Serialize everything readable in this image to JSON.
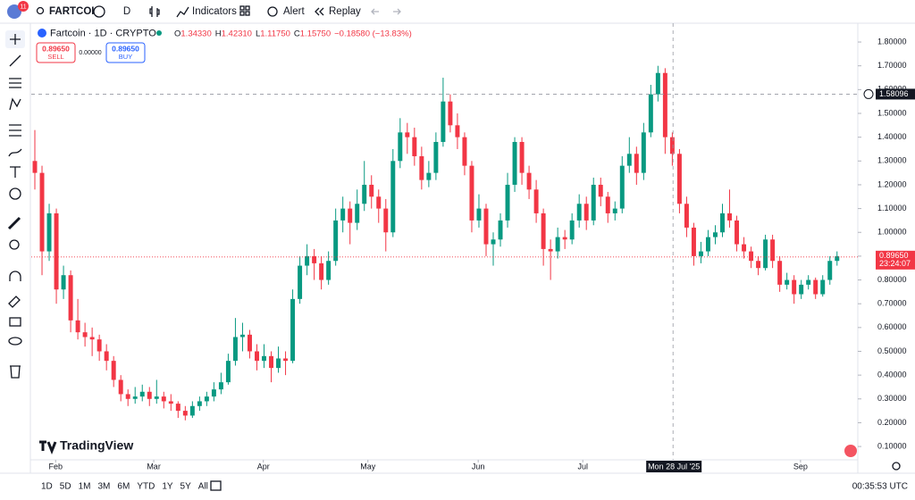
{
  "toolbar": {
    "badge": "11",
    "symbol": "FARTCOI",
    "interval": "D",
    "indicators": "Indicators",
    "alert": "Alert",
    "replay": "Replay"
  },
  "legend": {
    "name": "Fartcoin · 1D · CRYPTO",
    "ohlc": [
      {
        "label": "O",
        "value": "1.34330"
      },
      {
        "label": "H",
        "value": "1.42310"
      },
      {
        "label": "L",
        "value": "1.11750"
      },
      {
        "label": "C",
        "value": "1.15750"
      }
    ],
    "change": "−0.18580 (−13.83%)"
  },
  "trade": {
    "sell_price": "0.89650",
    "sell": "SELL",
    "spread": "0.00000",
    "buy_price": "0.89650",
    "buy": "BUY"
  },
  "chart_data": {
    "type": "candlestick",
    "up_color": "#089981",
    "down_color": "#f23645",
    "candles": [
      [
        1.3,
        1.43,
        1.18,
        1.25
      ],
      [
        1.25,
        1.28,
        0.82,
        0.92
      ],
      [
        0.92,
        1.12,
        0.88,
        1.08
      ],
      [
        1.08,
        1.1,
        0.7,
        0.76
      ],
      [
        0.76,
        0.86,
        0.72,
        0.82
      ],
      [
        0.82,
        0.84,
        0.58,
        0.63
      ],
      [
        0.63,
        0.72,
        0.55,
        0.58
      ],
      [
        0.58,
        0.62,
        0.52,
        0.56
      ],
      [
        0.56,
        0.6,
        0.48,
        0.55
      ],
      [
        0.55,
        0.57,
        0.46,
        0.5
      ],
      [
        0.5,
        0.53,
        0.42,
        0.46
      ],
      [
        0.46,
        0.48,
        0.35,
        0.38
      ],
      [
        0.38,
        0.4,
        0.29,
        0.32
      ],
      [
        0.32,
        0.34,
        0.27,
        0.3
      ],
      [
        0.3,
        0.35,
        0.28,
        0.31
      ],
      [
        0.31,
        0.36,
        0.29,
        0.33
      ],
      [
        0.33,
        0.35,
        0.27,
        0.3
      ],
      [
        0.3,
        0.38,
        0.28,
        0.31
      ],
      [
        0.31,
        0.33,
        0.26,
        0.29
      ],
      [
        0.29,
        0.32,
        0.25,
        0.28
      ],
      [
        0.28,
        0.29,
        0.22,
        0.25
      ],
      [
        0.25,
        0.27,
        0.21,
        0.23
      ],
      [
        0.23,
        0.29,
        0.22,
        0.27
      ],
      [
        0.27,
        0.31,
        0.25,
        0.29
      ],
      [
        0.29,
        0.33,
        0.27,
        0.31
      ],
      [
        0.31,
        0.37,
        0.29,
        0.34
      ],
      [
        0.34,
        0.41,
        0.32,
        0.37
      ],
      [
        0.37,
        0.49,
        0.36,
        0.46
      ],
      [
        0.46,
        0.64,
        0.44,
        0.56
      ],
      [
        0.56,
        0.62,
        0.5,
        0.57
      ],
      [
        0.57,
        0.59,
        0.47,
        0.5
      ],
      [
        0.5,
        0.53,
        0.42,
        0.46
      ],
      [
        0.46,
        0.53,
        0.43,
        0.48
      ],
      [
        0.48,
        0.5,
        0.37,
        0.43
      ],
      [
        0.43,
        0.52,
        0.41,
        0.47
      ],
      [
        0.47,
        0.5,
        0.4,
        0.46
      ],
      [
        0.46,
        0.76,
        0.45,
        0.72
      ],
      [
        0.72,
        0.9,
        0.7,
        0.86
      ],
      [
        0.86,
        0.95,
        0.82,
        0.9
      ],
      [
        0.9,
        0.93,
        0.8,
        0.87
      ],
      [
        0.87,
        0.9,
        0.76,
        0.8
      ],
      [
        0.8,
        0.92,
        0.78,
        0.88
      ],
      [
        0.88,
        1.1,
        0.86,
        1.05
      ],
      [
        1.05,
        1.15,
        1.0,
        1.1
      ],
      [
        1.1,
        1.13,
        0.95,
        1.04
      ],
      [
        1.04,
        1.18,
        1.01,
        1.12
      ],
      [
        1.12,
        1.3,
        1.09,
        1.2
      ],
      [
        1.2,
        1.24,
        1.1,
        1.15
      ],
      [
        1.15,
        1.18,
        1.04,
        1.1
      ],
      [
        1.1,
        1.14,
        0.92,
        1.0
      ],
      [
        1.0,
        1.35,
        0.98,
        1.3
      ],
      [
        1.3,
        1.48,
        1.27,
        1.42
      ],
      [
        1.42,
        1.46,
        1.33,
        1.4
      ],
      [
        1.4,
        1.44,
        1.28,
        1.32
      ],
      [
        1.32,
        1.36,
        1.18,
        1.22
      ],
      [
        1.22,
        1.3,
        1.19,
        1.25
      ],
      [
        1.25,
        1.42,
        1.22,
        1.38
      ],
      [
        1.38,
        1.65,
        1.36,
        1.55
      ],
      [
        1.55,
        1.58,
        1.42,
        1.45
      ],
      [
        1.45,
        1.5,
        1.35,
        1.4
      ],
      [
        1.4,
        1.42,
        1.24,
        1.28
      ],
      [
        1.28,
        1.3,
        1.0,
        1.05
      ],
      [
        1.05,
        1.16,
        1.02,
        1.1
      ],
      [
        1.1,
        1.12,
        0.9,
        0.95
      ],
      [
        0.95,
        1.0,
        0.86,
        0.97
      ],
      [
        0.97,
        1.08,
        0.94,
        1.05
      ],
      [
        1.05,
        1.25,
        1.02,
        1.2
      ],
      [
        1.2,
        1.4,
        1.17,
        1.38
      ],
      [
        1.38,
        1.4,
        1.2,
        1.25
      ],
      [
        1.25,
        1.28,
        1.14,
        1.18
      ],
      [
        1.18,
        1.22,
        1.04,
        1.08
      ],
      [
        1.08,
        1.1,
        0.86,
        0.93
      ],
      [
        0.93,
        0.97,
        0.8,
        0.92
      ],
      [
        0.92,
        1.02,
        0.89,
        0.98
      ],
      [
        0.98,
        1.01,
        0.93,
        0.97
      ],
      [
        0.97,
        1.08,
        0.95,
        1.05
      ],
      [
        1.05,
        1.16,
        1.02,
        1.12
      ],
      [
        1.12,
        1.15,
        1.01,
        1.05
      ],
      [
        1.05,
        1.23,
        1.03,
        1.2
      ],
      [
        1.2,
        1.23,
        1.11,
        1.15
      ],
      [
        1.15,
        1.17,
        1.04,
        1.08
      ],
      [
        1.08,
        1.13,
        1.05,
        1.1
      ],
      [
        1.1,
        1.32,
        1.08,
        1.28
      ],
      [
        1.28,
        1.4,
        1.25,
        1.33
      ],
      [
        1.33,
        1.36,
        1.2,
        1.25
      ],
      [
        1.25,
        1.46,
        1.22,
        1.42
      ],
      [
        1.42,
        1.62,
        1.4,
        1.58
      ],
      [
        1.58,
        1.7,
        1.55,
        1.67
      ],
      [
        1.67,
        1.69,
        1.33,
        1.4
      ],
      [
        1.4,
        1.42,
        1.28,
        1.33
      ],
      [
        1.33,
        1.35,
        1.08,
        1.12
      ],
      [
        1.12,
        1.15,
        0.98,
        1.02
      ],
      [
        1.02,
        1.04,
        0.86,
        0.9
      ],
      [
        0.9,
        0.96,
        0.87,
        0.92
      ],
      [
        0.92,
        1.01,
        0.9,
        0.98
      ],
      [
        0.98,
        1.03,
        0.95,
        1.0
      ],
      [
        1.0,
        1.12,
        0.98,
        1.08
      ],
      [
        1.08,
        1.18,
        1.02,
        1.05
      ],
      [
        1.05,
        1.07,
        0.92,
        0.95
      ],
      [
        0.95,
        0.98,
        0.89,
        0.92
      ],
      [
        0.92,
        0.94,
        0.85,
        0.88
      ],
      [
        0.88,
        0.9,
        0.82,
        0.85
      ],
      [
        0.85,
        0.99,
        0.84,
        0.97
      ],
      [
        0.97,
        0.99,
        0.85,
        0.88
      ],
      [
        0.88,
        0.9,
        0.75,
        0.78
      ],
      [
        0.78,
        0.83,
        0.76,
        0.8
      ],
      [
        0.8,
        0.82,
        0.7,
        0.74
      ],
      [
        0.74,
        0.8,
        0.72,
        0.78
      ],
      [
        0.78,
        0.82,
        0.76,
        0.8
      ],
      [
        0.8,
        0.81,
        0.72,
        0.74
      ],
      [
        0.74,
        0.82,
        0.73,
        0.8
      ],
      [
        0.8,
        0.9,
        0.78,
        0.88
      ],
      [
        0.88,
        0.92,
        0.86,
        0.9
      ]
    ],
    "xlim": [
      -0.5,
      114.9
    ],
    "ylim": [
      0.044,
      1.864
    ],
    "xticks": [
      {
        "value": 2.9,
        "label": "Feb"
      },
      {
        "value": 16.6,
        "label": "Mar"
      },
      {
        "value": 31.9,
        "label": "Apr"
      },
      {
        "value": 46.5,
        "label": "May"
      },
      {
        "value": 61.9,
        "label": "Jun"
      },
      {
        "value": 76.5,
        "label": "Jul"
      },
      {
        "value": 106.9,
        "label": "Sep"
      }
    ],
    "yticks": [
      {
        "value": 0.1,
        "label": "0.10000"
      },
      {
        "value": 0.2,
        "label": "0.20000"
      },
      {
        "value": 0.3,
        "label": "0.30000"
      },
      {
        "value": 0.4,
        "label": "0.40000"
      },
      {
        "value": 0.5,
        "label": "0.50000"
      },
      {
        "value": 0.6,
        "label": "0.60000"
      },
      {
        "value": 0.7,
        "label": "0.70000"
      },
      {
        "value": 0.8,
        "label": "0.80000"
      },
      {
        "value": 0.9,
        "label": "0.90000"
      },
      {
        "value": 1.0,
        "label": "1.00000"
      },
      {
        "value": 1.1,
        "label": "1.10000"
      },
      {
        "value": 1.2,
        "label": "1.20000"
      },
      {
        "value": 1.3,
        "label": "1.30000"
      },
      {
        "value": 1.4,
        "label": "1.40000"
      },
      {
        "value": 1.5,
        "label": "1.50000"
      },
      {
        "value": 1.6,
        "label": "1.60000"
      },
      {
        "value": 1.7,
        "label": "1.70000"
      },
      {
        "value": 1.8,
        "label": "1.80000"
      }
    ],
    "last_price": 0.8965,
    "last_price_label": "0.89650",
    "countdown": "23:24:07",
    "crosshair": {
      "index": 89.1,
      "price": 1.58096,
      "date_label": "Mon 28 Jul '25"
    },
    "watermark": "TradingView"
  },
  "footer": {
    "ranges": [
      "1D",
      "5D",
      "1M",
      "3M",
      "6M",
      "YTD",
      "1Y",
      "5Y",
      "All"
    ],
    "clock": "00:35:53 UTC"
  }
}
